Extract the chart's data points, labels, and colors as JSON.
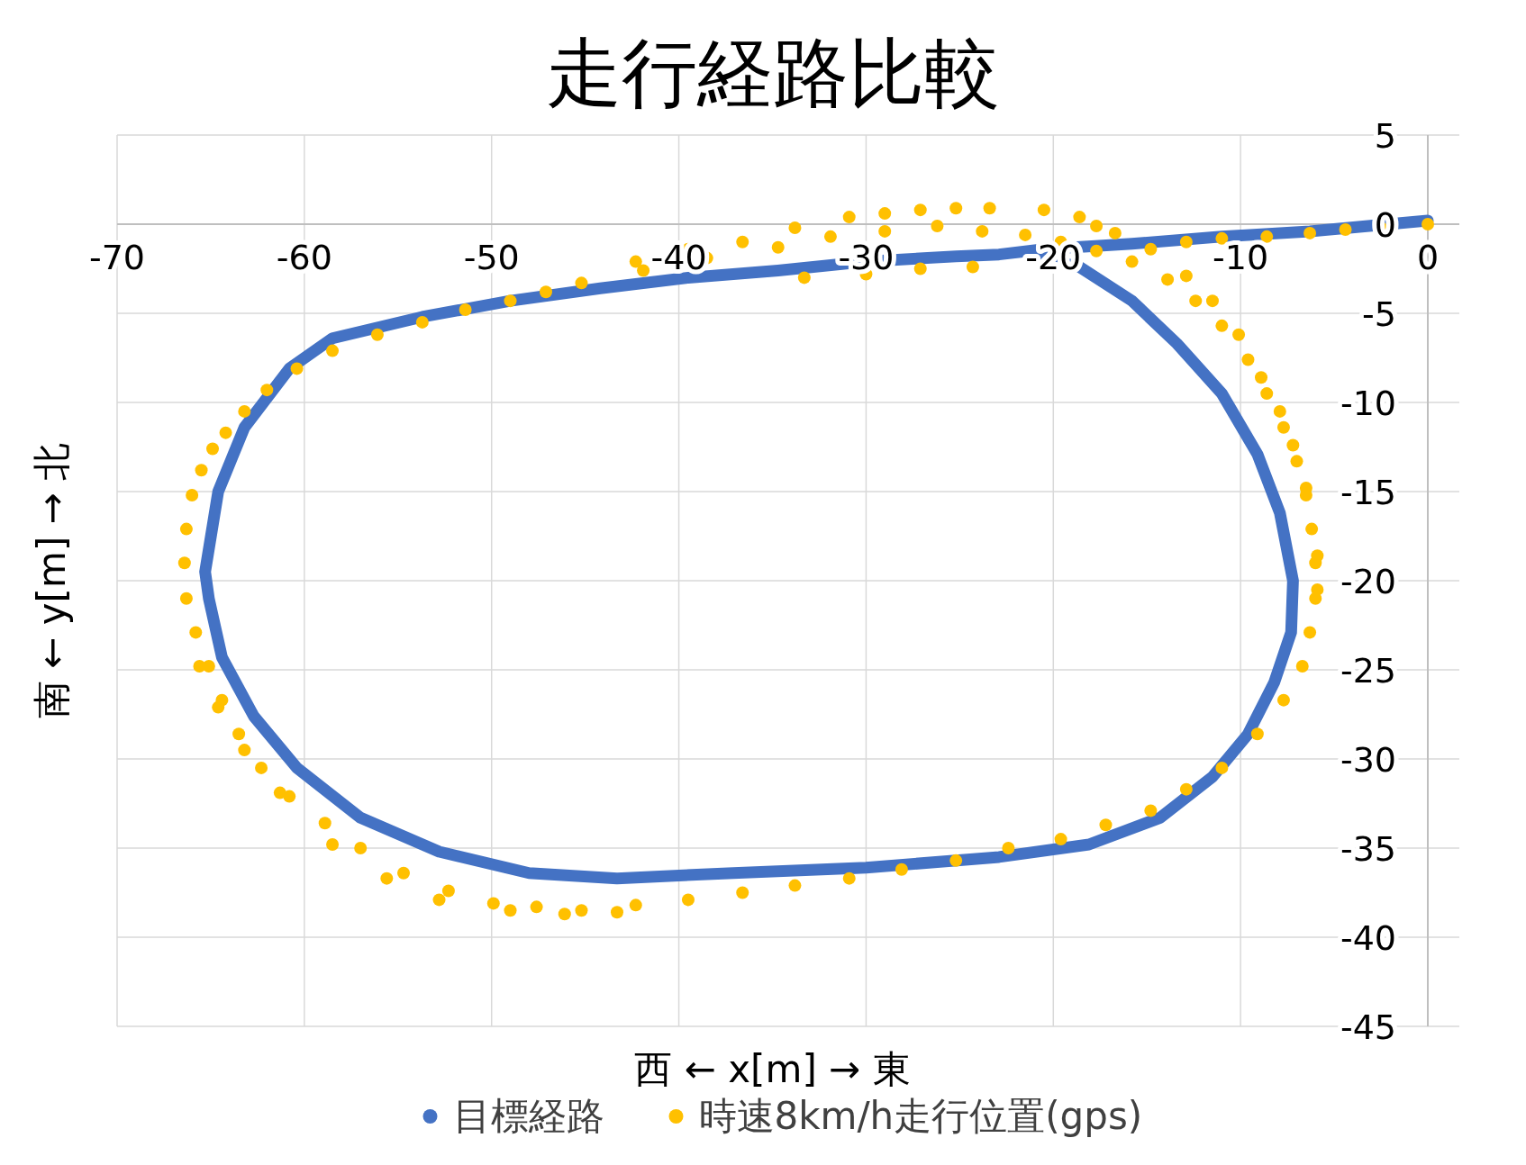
{
  "chart_data": {
    "type": "scatter",
    "title": "走行経路比較",
    "xlabel": "西 ← x[m] → 東",
    "ylabel": "南 ← y[m] → 北",
    "xlim": [
      -70,
      0
    ],
    "ylim": [
      -45,
      5
    ],
    "xticks": [
      -70,
      -60,
      -50,
      -40,
      -30,
      -20,
      -10,
      0
    ],
    "yticks": [
      -45,
      -40,
      -35,
      -30,
      -25,
      -20,
      -15,
      -10,
      -5,
      0,
      5
    ],
    "grid": true,
    "legend": "bottom",
    "marker": "circle",
    "series": [
      {
        "name": "目標経路",
        "type": "line",
        "marker": "none",
        "color": "#4472c4",
        "x": [
          0,
          -6.3,
          -11.0,
          -15.8,
          -20.5,
          -22.9,
          -25.2,
          -30.0,
          -34.7,
          -39.5,
          -44.2,
          -49.0,
          -53.7,
          -58.5,
          -60.8,
          -63.2,
          -64.6,
          -65.3,
          -65.1,
          -64.4,
          -62.7,
          -60.4,
          -57.0,
          -52.8,
          -48.0,
          -43.3,
          -37.1,
          -30.0,
          -22.9,
          -18.1,
          -14.3,
          -11.5,
          -9.6,
          -8.2,
          -7.3,
          -7.2,
          -7.9,
          -9.1,
          -11.0,
          -13.4,
          -15.8,
          -18.6,
          -21.0
        ],
        "values": [
          0.2,
          -0.4,
          -0.7,
          -1.1,
          -1.4,
          -1.7,
          -1.8,
          -2.1,
          -2.6,
          -3.0,
          -3.6,
          -4.3,
          -5.2,
          -6.4,
          -8.1,
          -11.4,
          -15.0,
          -19.5,
          -21.0,
          -24.3,
          -27.6,
          -30.5,
          -33.3,
          -35.2,
          -36.4,
          -36.7,
          -36.4,
          -36.1,
          -35.5,
          -34.8,
          -33.3,
          -31.0,
          -28.6,
          -25.7,
          -22.9,
          -20.0,
          -16.2,
          -12.9,
          -9.5,
          -6.7,
          -4.3,
          -2.4,
          -1.8
        ]
      },
      {
        "name": "時速8km/h走行位置(gps)",
        "color": "#ffc000",
        "x": [
          0,
          -2.5,
          -4.4,
          -6.3,
          -8.6,
          -11.0,
          -12.9,
          -42.3,
          -39.5,
          -36.6,
          -33.8,
          -30.9,
          -29.0,
          -27.1,
          -25.2,
          -23.4,
          -20.5,
          -18.6,
          -17.7,
          -45.2,
          -41.9,
          -38.5,
          -34.7,
          -31.9,
          -29.0,
          -26.2,
          -23.8,
          -21.5,
          -19.6,
          -17.7,
          -15.8,
          -13.9,
          -12.4,
          -11.0,
          -9.6,
          -8.6,
          -7.7,
          -7.0,
          -6.5,
          -6.2,
          -6.0,
          -6.0,
          -6.3,
          -33.3,
          -30.0,
          -27.1,
          -24.3,
          -16.7,
          -14.8,
          -12.9,
          -11.5,
          -10.1,
          -8.9,
          -7.9,
          -7.2,
          -6.5,
          -5.9,
          -5.9,
          -6.7,
          -7.7,
          -9.1,
          -11.0,
          -12.9,
          -14.8,
          -17.2,
          -19.6,
          -22.4,
          -25.2,
          -28.1,
          -30.9,
          -33.8,
          -36.6,
          -39.5,
          -42.3,
          -45.2,
          -47.6,
          -49.9,
          -52.3,
          -54.7,
          -57.0,
          -58.9,
          -60.8,
          -62.3,
          -63.5,
          -64.4,
          -65.1,
          -65.8,
          -66.3,
          -66.4,
          -66.3,
          -66.0,
          -65.5,
          -64.9,
          -64.2,
          -63.2,
          -62.0,
          -60.4,
          -58.5,
          -56.1,
          -53.7,
          -51.4,
          -49.0,
          -47.1,
          -49.0,
          -46.1,
          -43.3,
          -52.8,
          -55.6,
          -58.5,
          -61.3,
          -63.2,
          -64.6,
          -65.6
        ],
        "values": [
          0,
          -0.2,
          -0.3,
          -0.5,
          -0.7,
          -0.8,
          -1.0,
          -2.1,
          -1.4,
          -1.0,
          -0.2,
          0.4,
          0.6,
          0.8,
          0.9,
          0.9,
          0.8,
          0.4,
          -0.1,
          -3.3,
          -2.6,
          -1.9,
          -1.3,
          -0.7,
          -0.4,
          -0.1,
          -0.4,
          -0.6,
          -1.0,
          -1.5,
          -2.1,
          -3.1,
          -4.3,
          -5.7,
          -7.6,
          -9.5,
          -11.4,
          -13.3,
          -15.2,
          -17.1,
          -19.0,
          -21.0,
          -22.9,
          -3.0,
          -2.8,
          -2.5,
          -2.4,
          -0.5,
          -1.4,
          -2.9,
          -4.3,
          -6.2,
          -8.6,
          -10.5,
          -12.4,
          -14.8,
          -18.6,
          -20.5,
          -24.8,
          -26.7,
          -28.6,
          -30.5,
          -31.7,
          -32.9,
          -33.7,
          -34.5,
          -35.0,
          -35.7,
          -36.2,
          -36.7,
          -37.1,
          -37.5,
          -37.9,
          -38.2,
          -38.5,
          -38.3,
          -38.1,
          -37.4,
          -36.4,
          -35.0,
          -33.6,
          -32.1,
          -30.5,
          -28.6,
          -26.7,
          -24.8,
          -22.9,
          -21.0,
          -19.0,
          -17.1,
          -15.2,
          -13.8,
          -12.6,
          -11.7,
          -10.5,
          -9.3,
          -8.1,
          -7.1,
          -6.2,
          -5.5,
          -4.8,
          -4.3,
          -3.8,
          -38.5,
          -38.7,
          -38.6,
          -37.9,
          -36.7,
          -34.8,
          -31.9,
          -29.5,
          -27.1,
          -24.8
        ]
      }
    ]
  }
}
